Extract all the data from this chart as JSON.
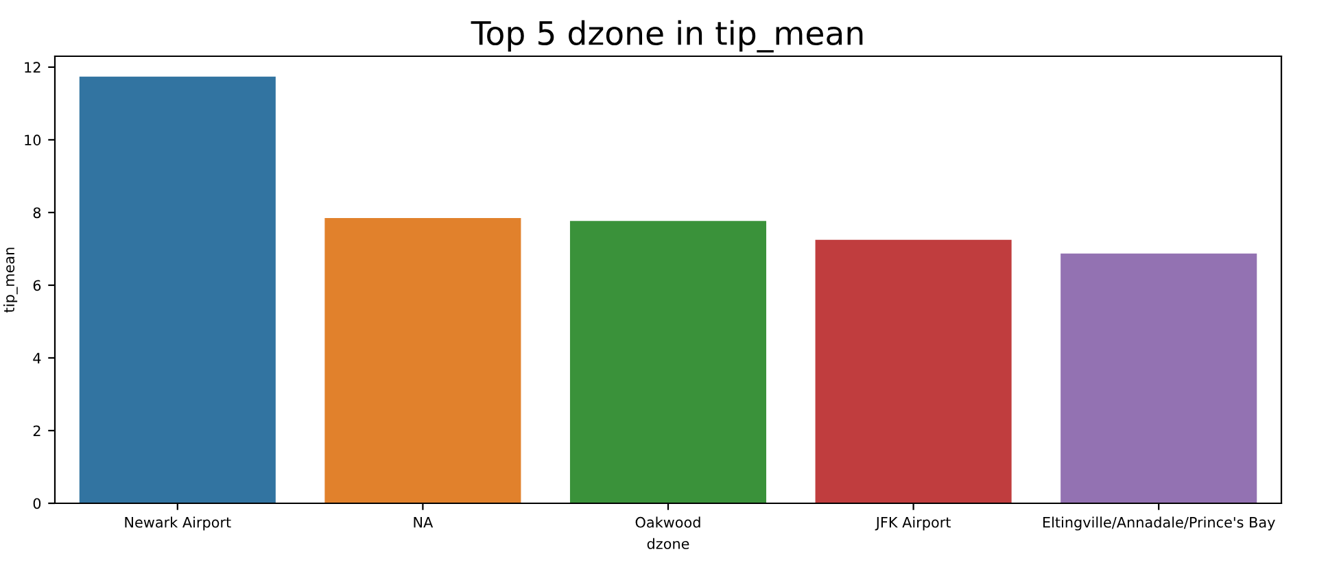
{
  "chart_data": {
    "type": "bar",
    "title": "Top 5 dzone in tip_mean",
    "xlabel": "dzone",
    "ylabel": "tip_mean",
    "categories": [
      "Newark Airport",
      "NA",
      "Oakwood",
      "JFK Airport",
      "Eltingville/Annadale/Prince's Bay"
    ],
    "values": [
      11.74,
      7.85,
      7.77,
      7.25,
      6.87
    ],
    "colors": [
      "#3274a1",
      "#e1812c",
      "#3a923a",
      "#c03d3e",
      "#9372b2"
    ],
    "ylim": [
      0,
      12.3
    ],
    "yticks": [
      0,
      2,
      4,
      6,
      8,
      10,
      12
    ],
    "grid": false,
    "legend": false
  }
}
